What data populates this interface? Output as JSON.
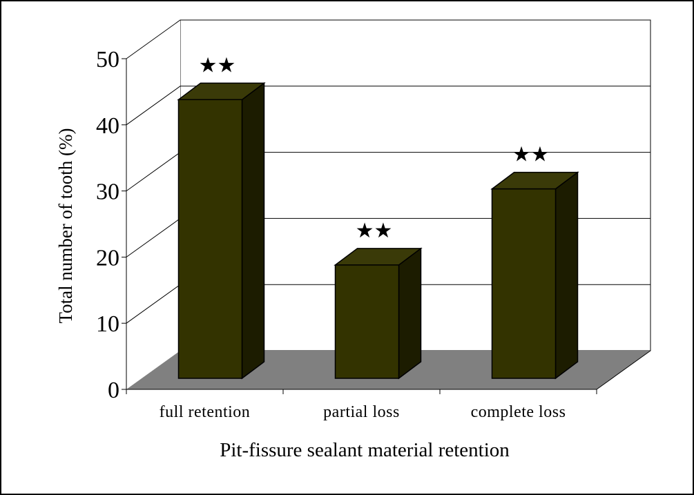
{
  "chart_data": {
    "type": "bar",
    "style": "3d-column",
    "title": "",
    "categories": [
      "full retention",
      "partial loss",
      "complete loss"
    ],
    "values": [
      46,
      21,
      32.5
    ],
    "annotations": [
      "★★",
      "★★",
      "★★"
    ],
    "xlabel": "Pit-fissure sealant material retention",
    "ylabel": "Total number of tooth (%)",
    "ylim": [
      0,
      50
    ],
    "yticks": [
      0,
      10,
      20,
      30,
      40,
      50
    ],
    "ytick_labels": [
      "0",
      "10",
      "20",
      "30",
      "40",
      "50"
    ],
    "grid": true,
    "legend": "none"
  },
  "colors": {
    "bar_front": "#333300",
    "bar_side": "#1c1c00",
    "bar_top": "#3a3a08",
    "floor": "#808080",
    "wall": "#ffffff",
    "grid": "#000000",
    "text": "#000000"
  }
}
